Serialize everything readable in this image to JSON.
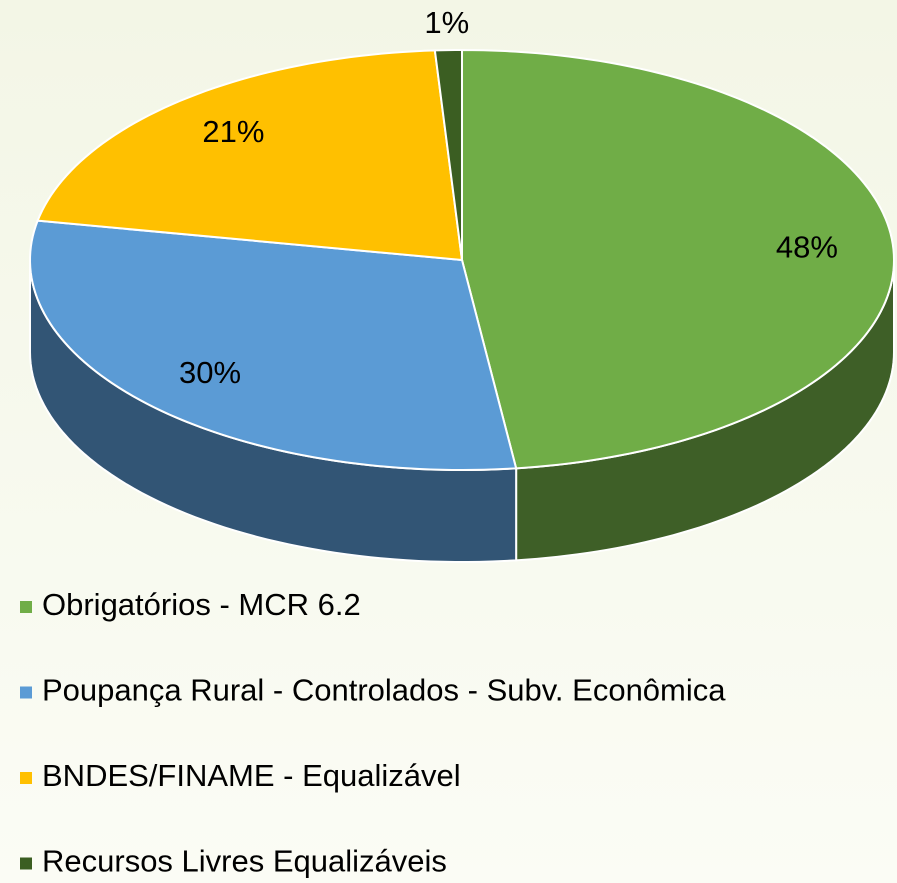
{
  "chart_data": {
    "type": "pie3d",
    "categories": [
      "Obrigatórios - MCR 6.2",
      "Poupança Rural - Controlados - Subv. Econômica",
      "BNDES/FINAME - Equalizável",
      "Recursos Livres Equalizáveis"
    ],
    "values": [
      48,
      30,
      21,
      1
    ],
    "value_labels": [
      "48%",
      "30%",
      "21%",
      "1%"
    ],
    "colors": [
      "#70ad47",
      "#5b9bd5",
      "#ffc000",
      "#3b5e22"
    ],
    "legend": "bottom"
  }
}
